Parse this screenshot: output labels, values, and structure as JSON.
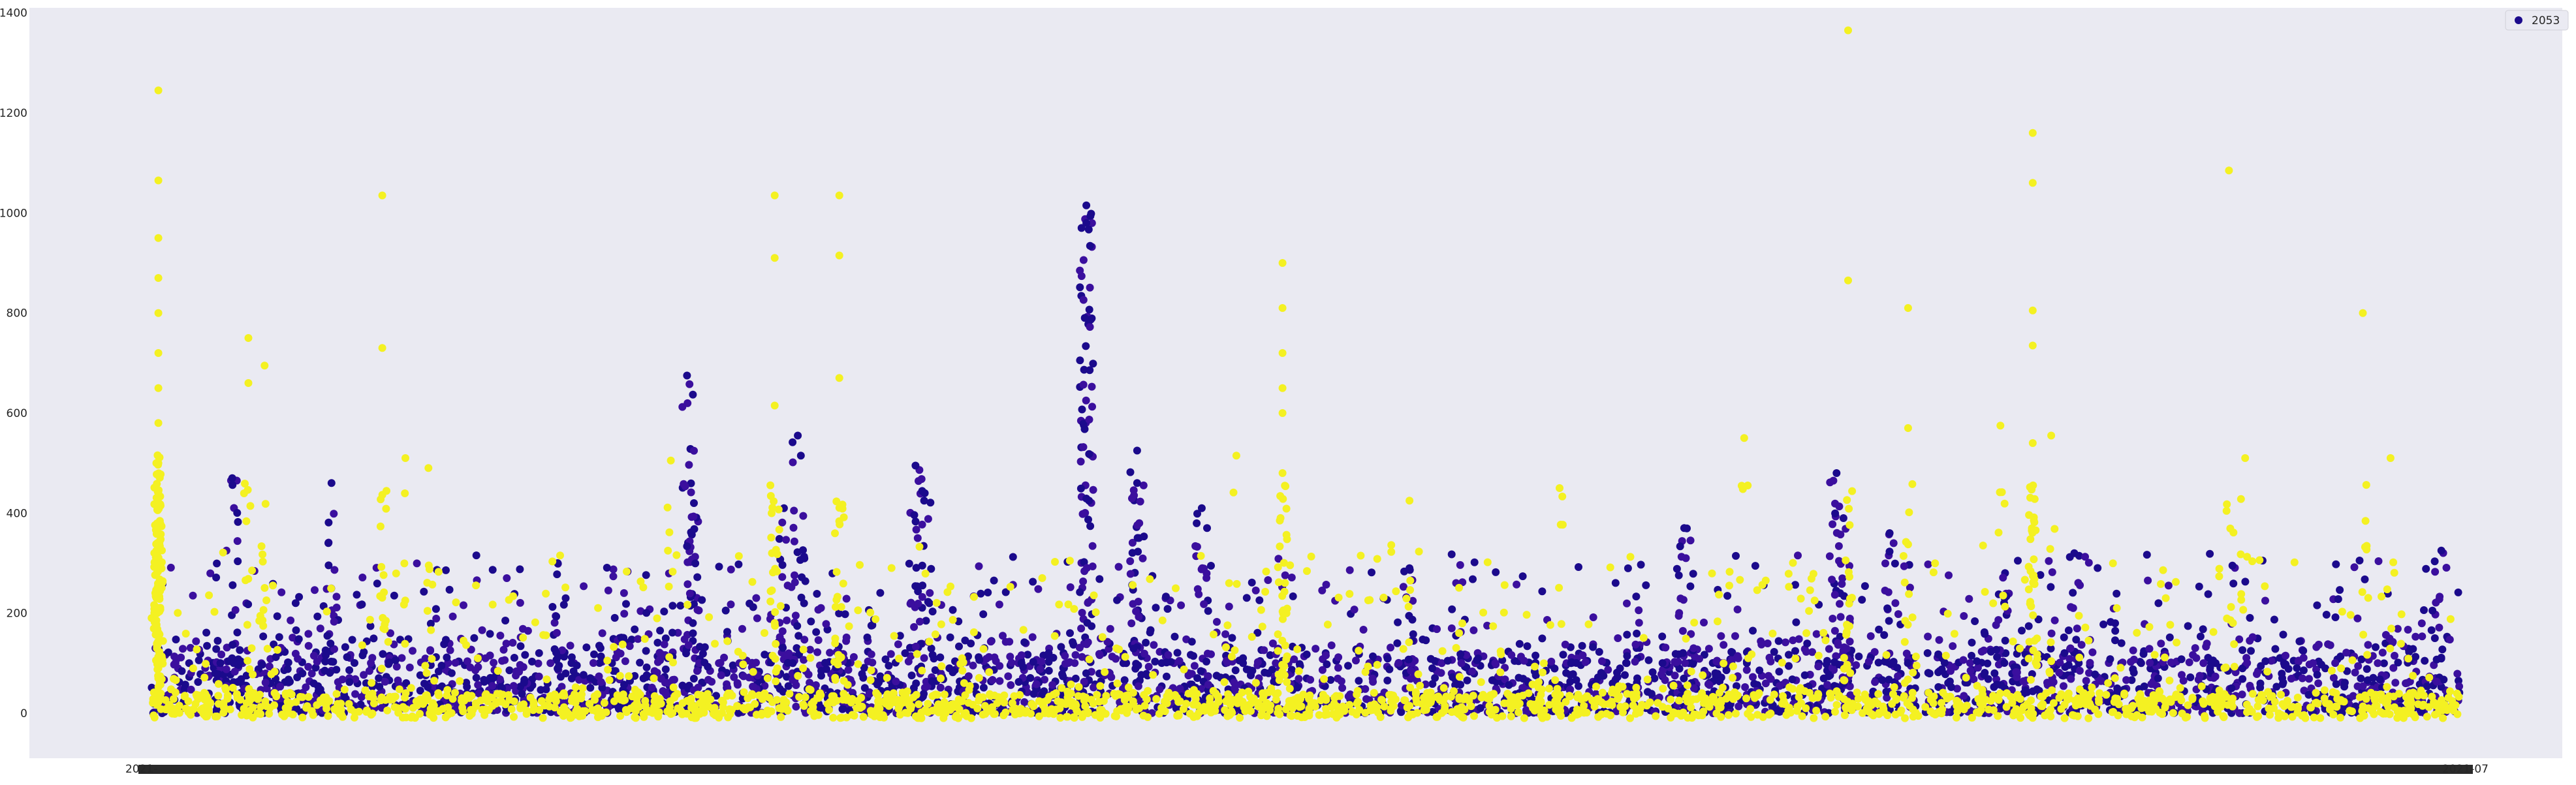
{
  "chart_data": {
    "type": "scatter",
    "title": "",
    "xlabel": "",
    "ylabel": "",
    "ylim": [
      -90,
      1410
    ],
    "yticks": [
      0,
      200,
      400,
      600,
      800,
      1000,
      1200,
      1400
    ],
    "grid": false,
    "legend": {
      "position": "top-right",
      "entries": [
        "2053"
      ]
    },
    "x_tick_labels": {
      "first": "2021-",
      "last": "2021-07"
    },
    "colors": {
      "background": "#eaeaf2",
      "series_dark": "#1b0a8c",
      "series_mid": "#3b0f9e",
      "series_yellow": "#f4f122",
      "legend_marker": "#1b0a8c"
    },
    "series": [
      {
        "name": "2053",
        "color": "#1b0a8c",
        "x_range": [
          0,
          1.0
        ],
        "baseline_band": [
          0,
          120
        ],
        "peaks": [
          {
            "x": 0.035,
            "y": 470
          },
          {
            "x": 0.078,
            "y": 460
          },
          {
            "x": 0.176,
            "y": 300
          },
          {
            "x": 0.235,
            "y": 420
          },
          {
            "x": 0.232,
            "y": 675
          },
          {
            "x": 0.274,
            "y": 410
          },
          {
            "x": 0.28,
            "y": 555
          },
          {
            "x": 0.331,
            "y": 495
          },
          {
            "x": 0.335,
            "y": 440
          },
          {
            "x": 0.405,
            "y": 1015
          },
          {
            "x": 0.405,
            "y": 980
          },
          {
            "x": 0.427,
            "y": 525
          },
          {
            "x": 0.427,
            "y": 460
          },
          {
            "x": 0.455,
            "y": 410
          },
          {
            "x": 0.545,
            "y": 290
          },
          {
            "x": 0.664,
            "y": 370
          },
          {
            "x": 0.73,
            "y": 480
          },
          {
            "x": 0.733,
            "y": 390
          },
          {
            "x": 0.753,
            "y": 360
          },
          {
            "x": 0.803,
            "y": 280
          },
          {
            "x": 0.833,
            "y": 320
          },
          {
            "x": 0.992,
            "y": 325
          }
        ]
      },
      {
        "color": "#f4f122",
        "x_range": [
          0,
          1.0
        ],
        "baseline_band": [
          -10,
          40
        ],
        "peaks": [
          {
            "x": 0.003,
            "y": 1245
          },
          {
            "x": 0.003,
            "y": 1065
          },
          {
            "x": 0.003,
            "y": 950
          },
          {
            "x": 0.003,
            "y": 870
          },
          {
            "x": 0.003,
            "y": 800
          },
          {
            "x": 0.003,
            "y": 720
          },
          {
            "x": 0.003,
            "y": 650
          },
          {
            "x": 0.003,
            "y": 580
          },
          {
            "x": 0.003,
            "y": 500
          },
          {
            "x": 0.042,
            "y": 750
          },
          {
            "x": 0.042,
            "y": 660
          },
          {
            "x": 0.049,
            "y": 695
          },
          {
            "x": 0.1,
            "y": 1035
          },
          {
            "x": 0.1,
            "y": 730
          },
          {
            "x": 0.11,
            "y": 510
          },
          {
            "x": 0.12,
            "y": 490
          },
          {
            "x": 0.225,
            "y": 505
          },
          {
            "x": 0.27,
            "y": 1035
          },
          {
            "x": 0.27,
            "y": 910
          },
          {
            "x": 0.27,
            "y": 615
          },
          {
            "x": 0.298,
            "y": 1035
          },
          {
            "x": 0.298,
            "y": 915
          },
          {
            "x": 0.298,
            "y": 670
          },
          {
            "x": 0.47,
            "y": 515
          },
          {
            "x": 0.49,
            "y": 900
          },
          {
            "x": 0.49,
            "y": 810
          },
          {
            "x": 0.49,
            "y": 720
          },
          {
            "x": 0.49,
            "y": 650
          },
          {
            "x": 0.49,
            "y": 600
          },
          {
            "x": 0.49,
            "y": 480
          },
          {
            "x": 0.545,
            "y": 425
          },
          {
            "x": 0.61,
            "y": 450
          },
          {
            "x": 0.69,
            "y": 550
          },
          {
            "x": 0.735,
            "y": 1365
          },
          {
            "x": 0.735,
            "y": 865
          },
          {
            "x": 0.761,
            "y": 810
          },
          {
            "x": 0.761,
            "y": 570
          },
          {
            "x": 0.801,
            "y": 575
          },
          {
            "x": 0.815,
            "y": 1160
          },
          {
            "x": 0.815,
            "y": 1060
          },
          {
            "x": 0.815,
            "y": 805
          },
          {
            "x": 0.815,
            "y": 735
          },
          {
            "x": 0.815,
            "y": 540
          },
          {
            "x": 0.823,
            "y": 555
          },
          {
            "x": 0.9,
            "y": 1085
          },
          {
            "x": 0.907,
            "y": 510
          },
          {
            "x": 0.958,
            "y": 800
          },
          {
            "x": 0.97,
            "y": 510
          }
        ]
      }
    ]
  }
}
